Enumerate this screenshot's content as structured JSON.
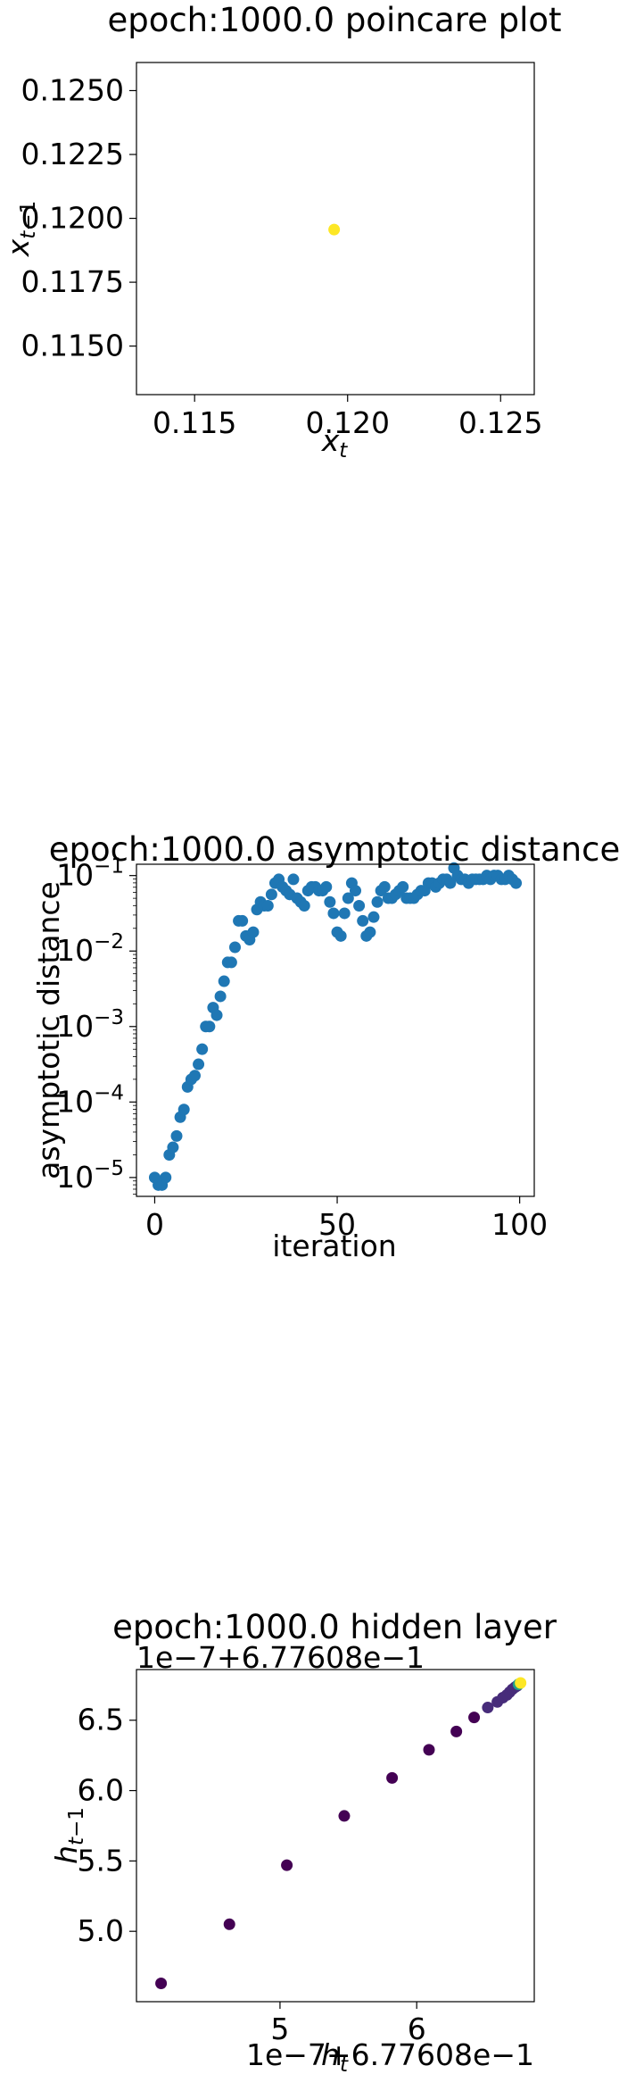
{
  "chart_data": [
    {
      "type": "scatter",
      "title": "epoch:1000.0 poincare plot",
      "xlabel": "x_t",
      "ylabel": "x_{t-1}",
      "xlim": [
        0.1131,
        0.1261
      ],
      "ylim": [
        0.1131,
        0.1261
      ],
      "xticks": [
        0.115,
        0.12,
        0.125
      ],
      "xtick_labels": [
        "0.115",
        "0.120",
        "0.125"
      ],
      "yticks": [
        0.115,
        0.1175,
        0.12,
        0.1225,
        0.125
      ],
      "ytick_labels": [
        "0.1150",
        "0.1175",
        "0.1200",
        "0.1225",
        "0.1250"
      ],
      "grid": false,
      "points": [
        {
          "x": 0.11956,
          "y": 0.11956,
          "color": "#fde725"
        }
      ]
    },
    {
      "type": "scatter",
      "title": "epoch:1000.0 asymptotic distance",
      "xlabel": "iteration",
      "ylabel": "asymptotic distance",
      "xscale": "linear",
      "yscale": "log",
      "xlim": [
        -5,
        104
      ],
      "ylim_log10": [
        -5.25,
        -0.85
      ],
      "xticks": [
        0,
        50,
        100
      ],
      "xtick_labels": [
        "0",
        "50",
        "100"
      ],
      "yticks_exp": [
        -5,
        -4,
        -3,
        -2,
        -1
      ],
      "ytick_labels": [
        "10^-5",
        "10^-4",
        "10^-3",
        "10^-2",
        "10^-1"
      ],
      "color": "#1f77b4",
      "x": [
        0,
        1,
        2,
        3,
        4,
        5,
        6,
        7,
        8,
        9,
        10,
        11,
        12,
        13,
        14,
        15,
        16,
        17,
        18,
        19,
        20,
        21,
        22,
        23,
        24,
        25,
        26,
        27,
        28,
        29,
        30,
        31,
        32,
        33,
        34,
        35,
        36,
        37,
        38,
        39,
        40,
        41,
        42,
        43,
        44,
        45,
        46,
        47,
        48,
        49,
        50,
        51,
        52,
        53,
        54,
        55,
        56,
        57,
        58,
        59,
        60,
        61,
        62,
        63,
        64,
        65,
        66,
        67,
        68,
        69,
        70,
        71,
        72,
        73,
        74,
        75,
        76,
        77,
        78,
        79,
        80,
        81,
        82,
        83,
        84,
        85,
        86,
        87,
        88,
        89,
        90,
        91,
        92,
        93,
        94,
        95,
        96,
        97,
        98,
        99
      ],
      "y_log10": [
        -5.0,
        -5.1,
        -5.1,
        -5.0,
        -4.7,
        -4.6,
        -4.45,
        -4.2,
        -4.1,
        -3.8,
        -3.7,
        -3.65,
        -3.5,
        -3.3,
        -3.0,
        -3.0,
        -2.75,
        -2.85,
        -2.6,
        -2.4,
        -2.15,
        -2.15,
        -1.95,
        -1.6,
        -1.6,
        -1.8,
        -1.85,
        -1.75,
        -1.45,
        -1.35,
        -1.4,
        -1.4,
        -1.25,
        -1.1,
        -1.05,
        -1.15,
        -1.2,
        -1.25,
        -1.05,
        -1.3,
        -1.35,
        -1.4,
        -1.2,
        -1.15,
        -1.15,
        -1.2,
        -1.2,
        -1.15,
        -1.35,
        -1.5,
        -1.75,
        -1.8,
        -1.5,
        -1.3,
        -1.1,
        -1.2,
        -1.4,
        -1.6,
        -1.8,
        -1.75,
        -1.55,
        -1.35,
        -1.2,
        -1.15,
        -1.3,
        -1.3,
        -1.25,
        -1.2,
        -1.15,
        -1.3,
        -1.3,
        -1.3,
        -1.25,
        -1.2,
        -1.2,
        -1.1,
        -1.1,
        -1.15,
        -1.1,
        -1.05,
        -1.05,
        -1.1,
        -0.9,
        -1.0,
        -1.05,
        -1.05,
        -1.1,
        -1.05,
        -1.05,
        -1.05,
        -1.05,
        -1.0,
        -1.05,
        -1.0,
        -1.0,
        -1.05,
        -1.05,
        -1.0,
        -1.05,
        -1.1
      ]
    },
    {
      "type": "scatter",
      "title": "epoch:1000.0 hidden layer",
      "xlabel": "h_t",
      "ylabel": "h_{t-1}",
      "x_offset_label": "1e−7+6.77608e−1",
      "y_offset_label": "1e−7+6.77608e−1",
      "xlim": [
        3.95,
        6.86
      ],
      "ylim": [
        4.5,
        6.86
      ],
      "xticks": [
        5.0,
        6.0
      ],
      "xtick_labels": [
        "5",
        "6"
      ],
      "yticks": [
        5.0,
        5.5,
        6.0,
        6.5
      ],
      "ytick_labels": [
        "5.0",
        "5.5",
        "6.0",
        "6.5"
      ],
      "colormap": "viridis",
      "points": [
        {
          "x": 4.13,
          "y": 4.63,
          "c": 0.0
        },
        {
          "x": 4.63,
          "y": 5.05,
          "c": 0.02
        },
        {
          "x": 5.05,
          "y": 5.47,
          "c": 0.04
        },
        {
          "x": 5.47,
          "y": 5.82,
          "c": 0.06
        },
        {
          "x": 5.82,
          "y": 6.09,
          "c": 0.08
        },
        {
          "x": 6.09,
          "y": 6.29,
          "c": 0.1
        },
        {
          "x": 6.29,
          "y": 6.42,
          "c": 0.12
        },
        {
          "x": 6.42,
          "y": 6.52,
          "c": 0.14
        },
        {
          "x": 6.52,
          "y": 6.59,
          "c": 0.16
        },
        {
          "x": 6.59,
          "y": 6.63,
          "c": 0.18
        },
        {
          "x": 6.63,
          "y": 6.66,
          "c": 0.2
        },
        {
          "x": 6.66,
          "y": 6.68,
          "c": 0.22
        },
        {
          "x": 6.68,
          "y": 6.7,
          "c": 0.24
        },
        {
          "x": 6.7,
          "y": 6.72,
          "c": 0.26
        },
        {
          "x": 6.72,
          "y": 6.735,
          "c": 0.28
        },
        {
          "x": 6.735,
          "y": 6.745,
          "c": 0.3
        },
        {
          "x": 6.745,
          "y": 6.755,
          "c": 0.5
        },
        {
          "x": 6.76,
          "y": 6.765,
          "c": 1.0
        }
      ]
    }
  ]
}
